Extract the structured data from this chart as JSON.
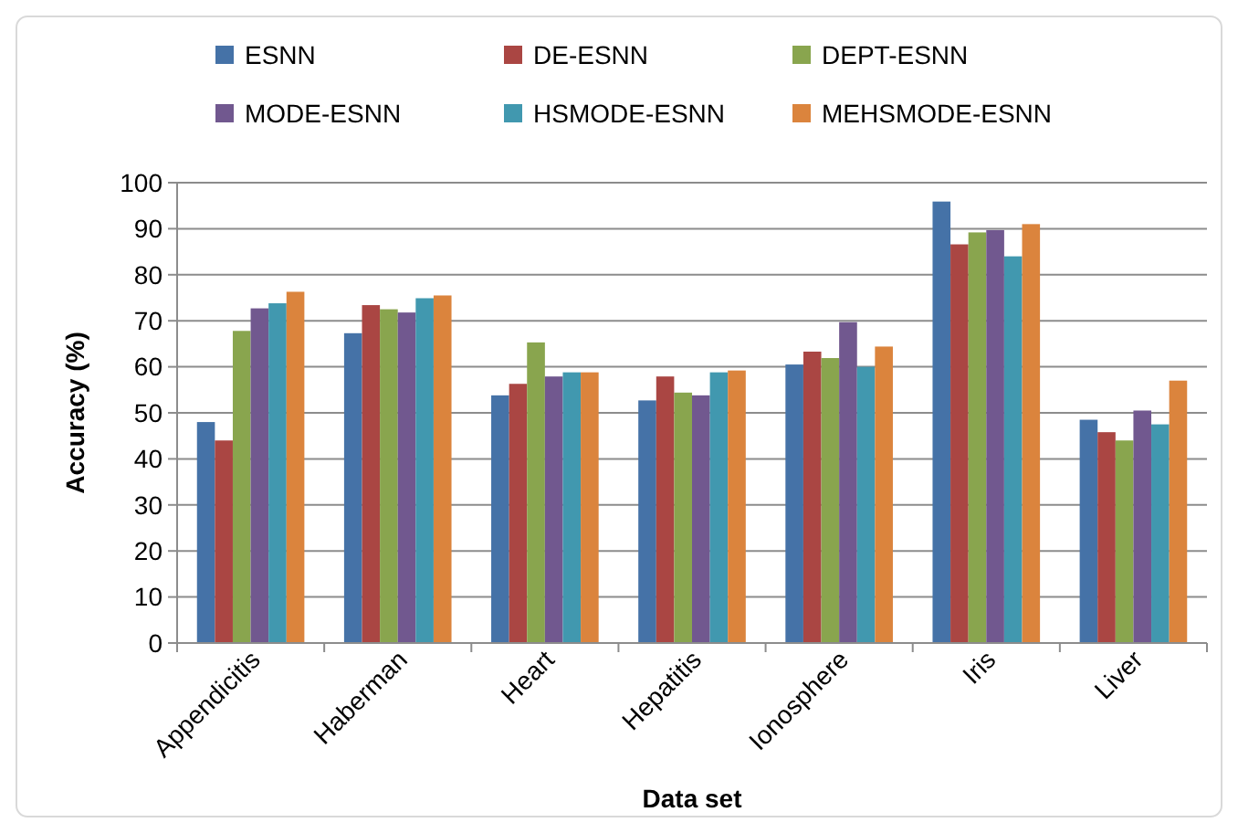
{
  "chart_data": {
    "type": "bar",
    "xlabel": "Data set",
    "ylabel": "Accuracy (%)",
    "categories": [
      "Appendicitis",
      "Haberman",
      "Heart",
      "Hepatitis",
      "Ionosphere",
      "Iris",
      "Liver"
    ],
    "ylim": [
      0,
      100
    ],
    "yticks": [
      0,
      10,
      20,
      30,
      40,
      50,
      60,
      70,
      80,
      90,
      100
    ],
    "grid": "y",
    "legend": "top",
    "series": [
      {
        "name": "ESNN",
        "color": "#4572a7",
        "values": [
          48,
          67.3,
          53.8,
          52.7,
          60.5,
          95.9,
          48.5
        ]
      },
      {
        "name": "DE-ESNN",
        "color": "#aa4643",
        "values": [
          44,
          73.4,
          56.3,
          57.9,
          63.3,
          86.6,
          45.8
        ]
      },
      {
        "name": "DEPT-ESNN",
        "color": "#89a54e",
        "values": [
          67.8,
          72.5,
          65.3,
          54.4,
          61.9,
          89.2,
          44
        ]
      },
      {
        "name": "MODE-ESNN",
        "color": "#71588f",
        "values": [
          72.7,
          71.8,
          57.9,
          53.8,
          69.7,
          89.7,
          50.5
        ]
      },
      {
        "name": "HSMODE-ESNN",
        "color": "#4198af",
        "values": [
          73.8,
          74.9,
          58.8,
          58.8,
          60,
          84,
          47.5
        ]
      },
      {
        "name": "MEHSMODE-ESNN",
        "color": "#db843d",
        "values": [
          76.3,
          75.5,
          58.8,
          59.2,
          64.4,
          91,
          57
        ]
      }
    ]
  }
}
